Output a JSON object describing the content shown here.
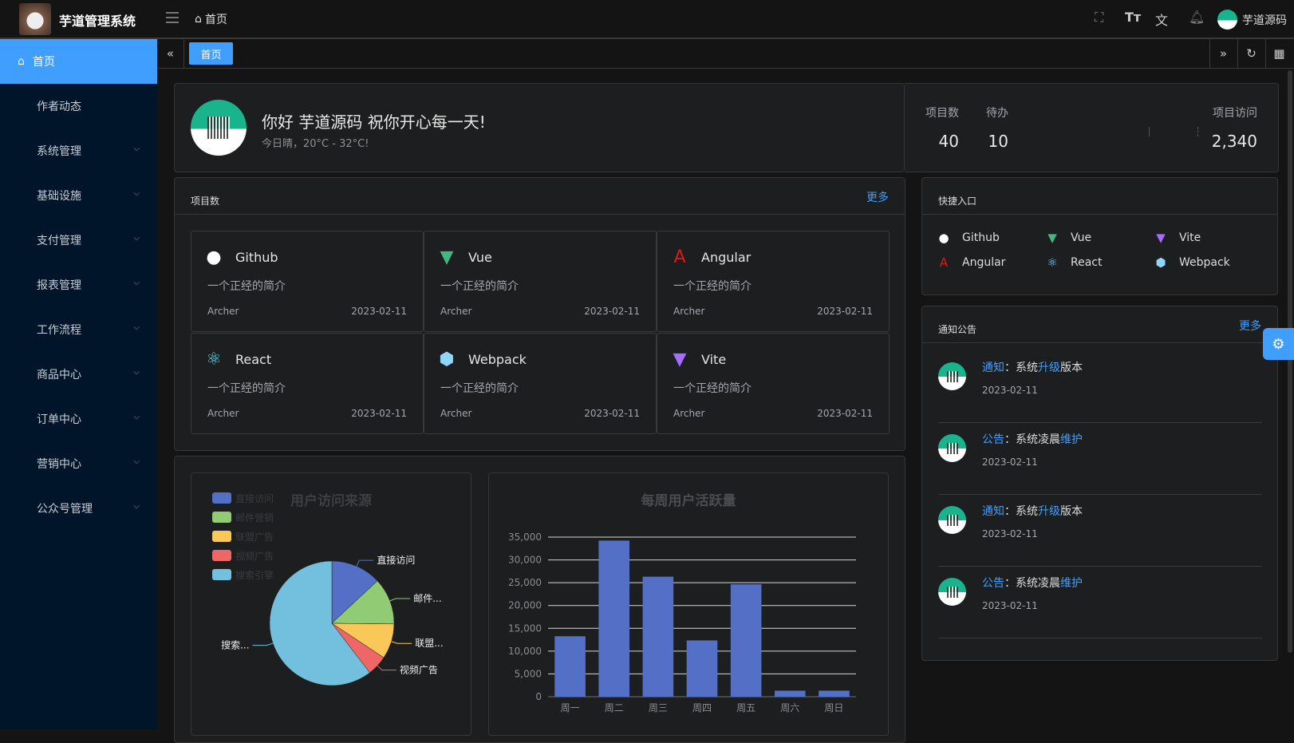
{
  "header": {
    "app_title": "芋道管理系统",
    "breadcrumb": "首页",
    "user_name": "芋道源码",
    "icons": [
      "fullscreen-icon",
      "font-size-icon",
      "translate-icon",
      "bell-icon"
    ]
  },
  "sidebar": {
    "items": [
      {
        "label": "首页",
        "active": true
      },
      {
        "label": "作者动态"
      },
      {
        "label": "系统管理",
        "expandable": true
      },
      {
        "label": "基础设施",
        "expandable": true
      },
      {
        "label": "支付管理",
        "expandable": true
      },
      {
        "label": "报表管理",
        "expandable": true
      },
      {
        "label": "工作流程",
        "expandable": true
      },
      {
        "label": "商品中心",
        "expandable": true
      },
      {
        "label": "订单中心",
        "expandable": true
      },
      {
        "label": "营销中心",
        "expandable": true
      },
      {
        "label": "公众号管理",
        "expandable": true
      }
    ]
  },
  "tabs": {
    "items": [
      "首页"
    ]
  },
  "welcome": {
    "greeting": "你好 芋道源码 祝你开心每一天!",
    "weather": "今日晴，20°C - 32°C!",
    "stats": [
      {
        "label": "项目数",
        "value": "40"
      },
      {
        "label": "待办",
        "value": "10"
      },
      {
        "label": "项目访问",
        "value": "2,340"
      }
    ]
  },
  "projects": {
    "title": "项目数",
    "more": "更多",
    "items": [
      {
        "name": "Github",
        "icon": "github-icon",
        "desc": "一个正经的简介",
        "author": "Archer",
        "date": "2023-02-11"
      },
      {
        "name": "Vue",
        "icon": "vue-icon",
        "desc": "一个正经的简介",
        "author": "Archer",
        "date": "2023-02-11"
      },
      {
        "name": "Angular",
        "icon": "angular-icon",
        "desc": "一个正经的简介",
        "author": "Archer",
        "date": "2023-02-11"
      },
      {
        "name": "React",
        "icon": "react-icon",
        "desc": "一个正经的简介",
        "author": "Archer",
        "date": "2023-02-11"
      },
      {
        "name": "Webpack",
        "icon": "webpack-icon",
        "desc": "一个正经的简介",
        "author": "Archer",
        "date": "2023-02-11"
      },
      {
        "name": "Vite",
        "icon": "vite-icon",
        "desc": "一个正经的简介",
        "author": "Archer",
        "date": "2023-02-11"
      }
    ]
  },
  "quick": {
    "title": "快捷入口",
    "items": [
      "Github",
      "Vue",
      "Vite",
      "Angular",
      "React",
      "Webpack"
    ]
  },
  "notices": {
    "title": "通知公告",
    "more": "更多",
    "items": [
      {
        "type": "通知",
        "sep": "：",
        "pre": "系统",
        "hl": "升级",
        "post": "版本",
        "date": "2023-02-11"
      },
      {
        "type": "公告",
        "sep": "：",
        "pre": "系统凌晨",
        "hl": "维护",
        "post": "",
        "date": "2023-02-11"
      },
      {
        "type": "通知",
        "sep": "：",
        "pre": "系统",
        "hl": "升级",
        "post": "版本",
        "date": "2023-02-11"
      },
      {
        "type": "公告",
        "sep": "：",
        "pre": "系统凌晨",
        "hl": "维护",
        "post": "",
        "date": "2023-02-11"
      }
    ]
  },
  "chart_data": [
    {
      "type": "pie",
      "title": "用户访问来源",
      "legend_position": "top-left",
      "categories": [
        "直接访问",
        "邮件营销",
        "联盟广告",
        "视频广告",
        "搜索引擎"
      ],
      "slice_labels": [
        "直接访问",
        "邮件...",
        "联盟...",
        "视频广告",
        "搜索..."
      ],
      "values": [
        335,
        310,
        234,
        135,
        1548
      ],
      "colors": [
        "#5470c6",
        "#91cc75",
        "#fac858",
        "#ee6666",
        "#73c0de"
      ]
    },
    {
      "type": "bar",
      "title": "每周用户活跃量",
      "categories": [
        "周一",
        "周二",
        "周三",
        "周四",
        "周五",
        "周六",
        "周日"
      ],
      "values": [
        13253,
        34235,
        26321,
        12340,
        24643,
        1322,
        1324
      ],
      "ylim": [
        0,
        35000
      ],
      "yticks": [
        "0",
        "5,000",
        "10,000",
        "15,000",
        "20,000",
        "25,000",
        "30,000",
        "35,000"
      ],
      "grid": true,
      "color": "#5470c6"
    }
  ]
}
